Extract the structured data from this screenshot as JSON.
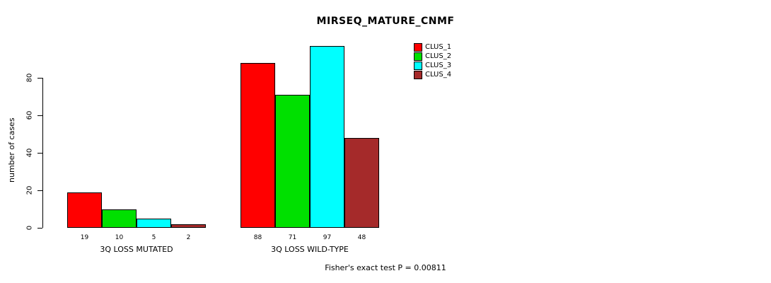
{
  "title": "MIRSEQ_MATURE_CNMF",
  "ylabel": "number of cases",
  "footer": "Fisher's exact test P = 0.00811",
  "legend": {
    "items": [
      {
        "label": "CLUS_1",
        "color": "#FF0000"
      },
      {
        "label": "CLUS_2",
        "color": "#00E000"
      },
      {
        "label": "CLUS_3",
        "color": "#00FFFF"
      },
      {
        "label": "CLUS_4",
        "color": "#A52A2A"
      }
    ]
  },
  "chart_data": {
    "type": "bar",
    "title": "MIRSEQ_MATURE_CNMF",
    "xlabel": "",
    "ylabel": "number of cases",
    "series_names": [
      "CLUS_1",
      "CLUS_2",
      "CLUS_3",
      "CLUS_4"
    ],
    "colors": [
      "#FF0000",
      "#00E000",
      "#00FFFF",
      "#A52A2A"
    ],
    "groups": [
      {
        "label": "3Q LOSS MUTATED",
        "values": [
          19,
          10,
          5,
          2
        ]
      },
      {
        "label": "3Q LOSS WILD-TYPE",
        "values": [
          88,
          71,
          97,
          48
        ]
      }
    ],
    "yticks": [
      0,
      20,
      40,
      60,
      80
    ],
    "ylim": [
      0,
      100
    ],
    "grid": false,
    "legend_position": "top-right",
    "annotation": "Fisher's exact test P = 0.00811"
  }
}
